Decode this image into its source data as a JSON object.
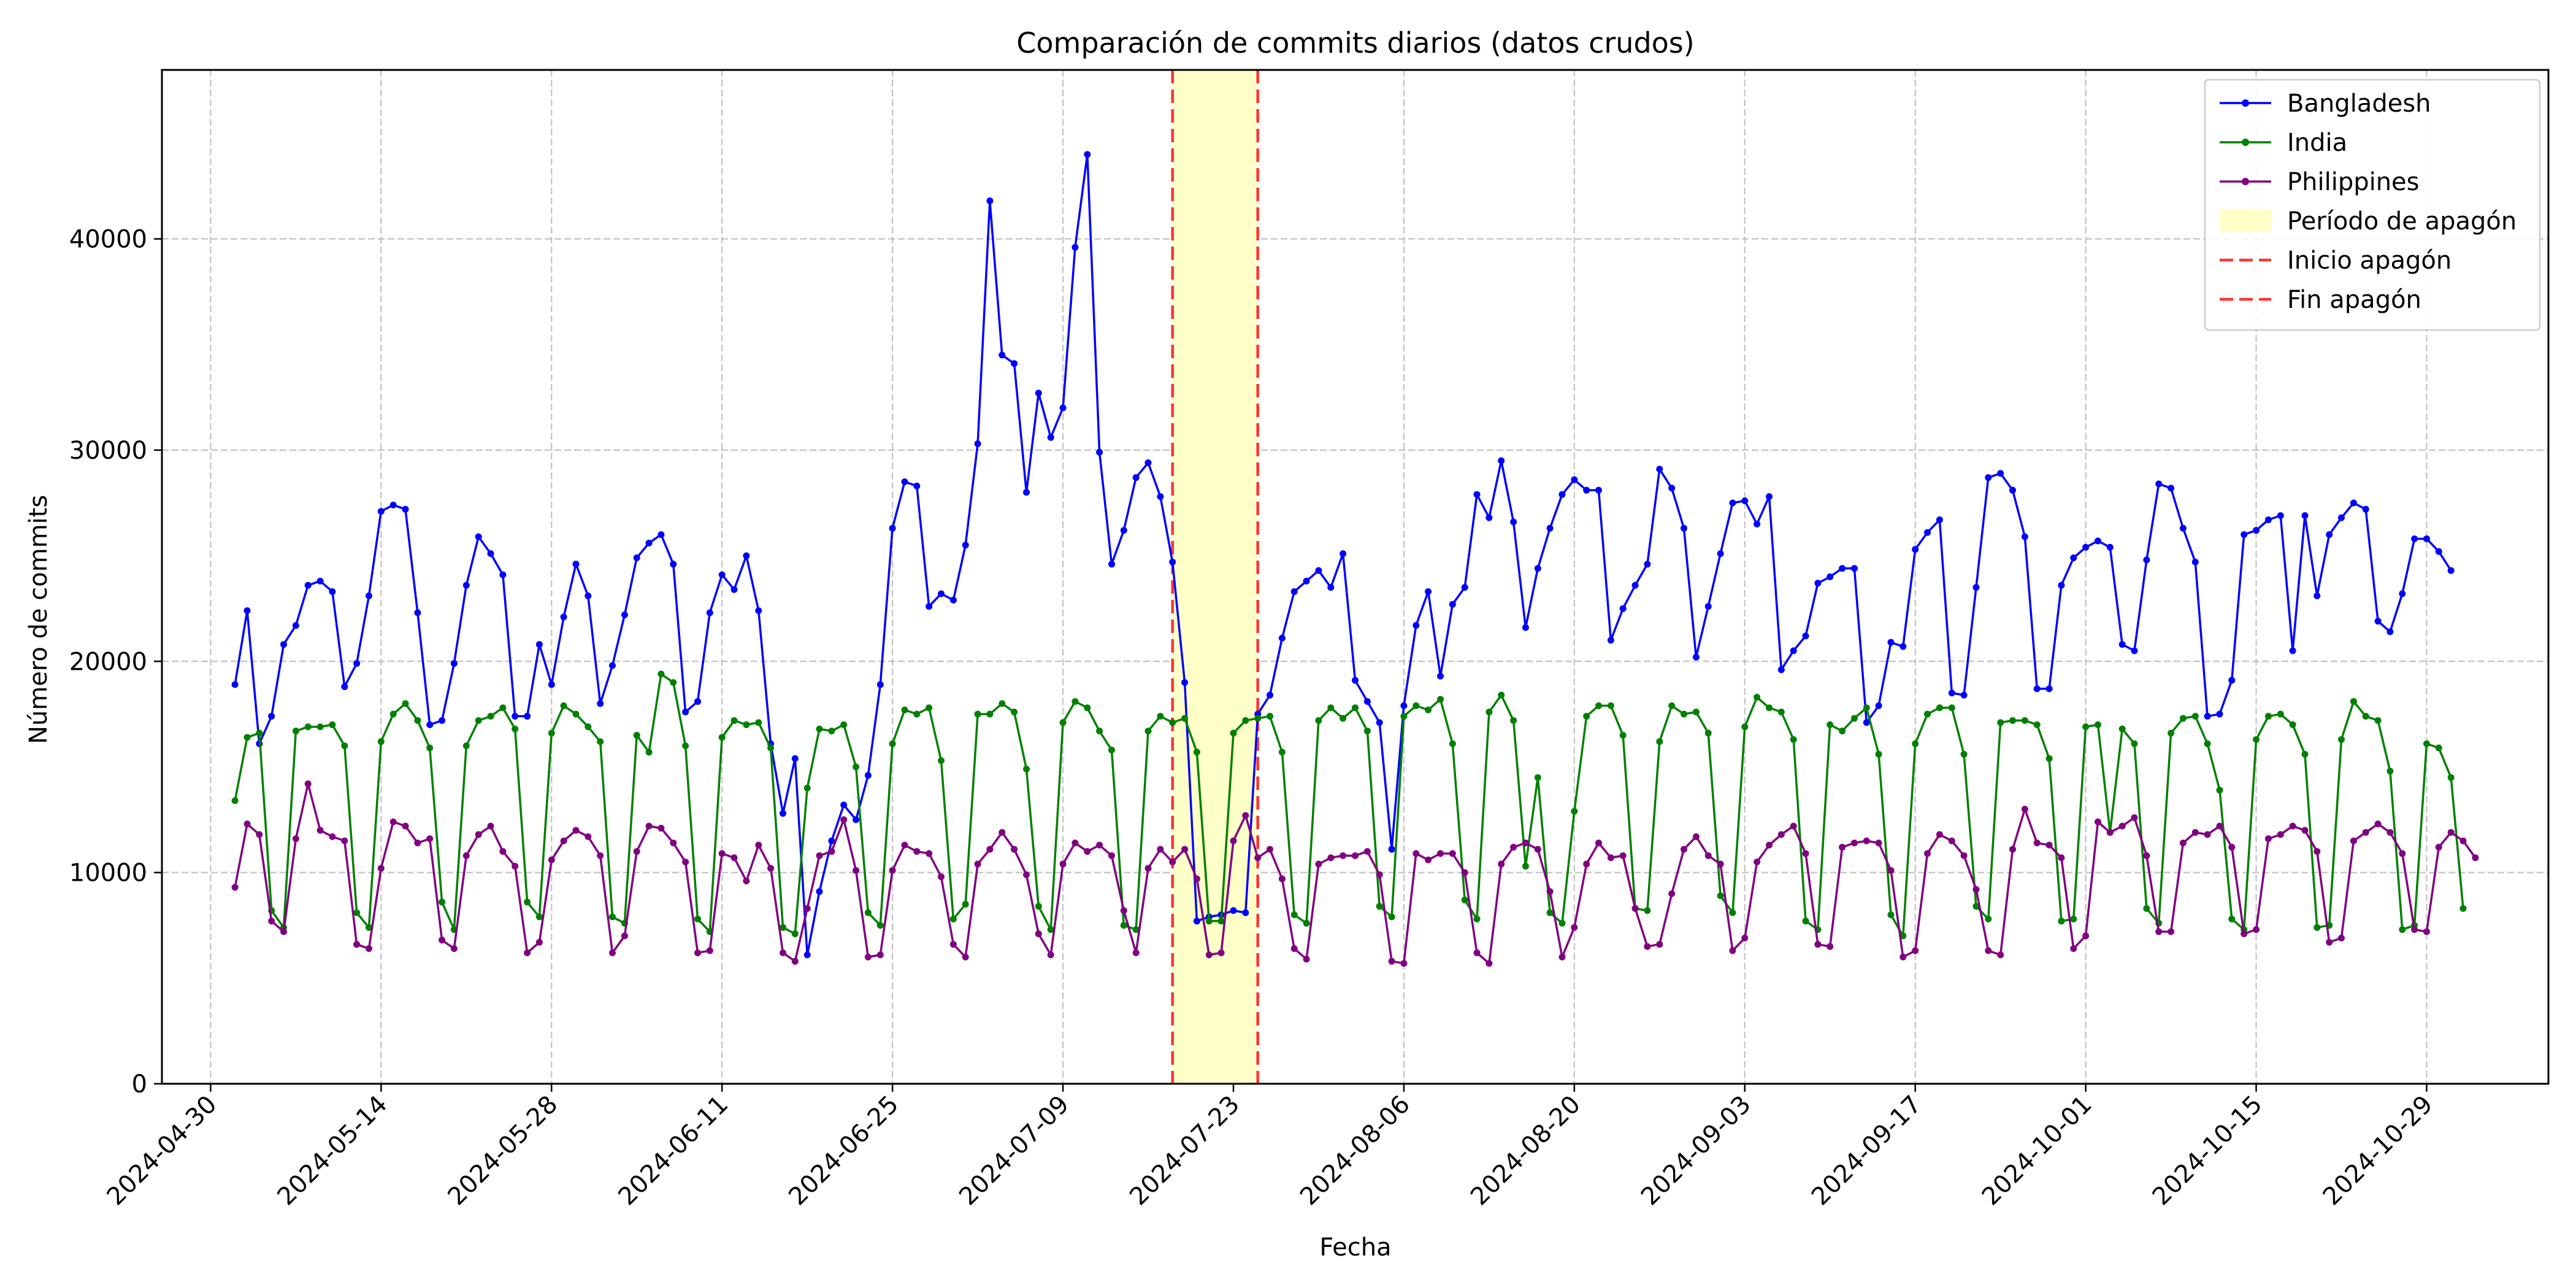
{
  "chart_data": {
    "type": "line",
    "title": "Comparación de commits diarios (datos crudos)",
    "xlabel": "Fecha",
    "ylabel": "Número de commits",
    "x_start": "2024-05-02",
    "x_end": "2024-11-02",
    "xlim": [
      "2024-04-26",
      "2024-11-08"
    ],
    "ylim": [
      0,
      48000
    ],
    "x_ticks": [
      "2024-04-30",
      "2024-05-14",
      "2024-05-28",
      "2024-06-11",
      "2024-06-25",
      "2024-07-09",
      "2024-07-23",
      "2024-08-06",
      "2024-08-20",
      "2024-09-03",
      "2024-09-17",
      "2024-10-01",
      "2024-10-15",
      "2024-10-29"
    ],
    "y_ticks": [
      0,
      10000,
      20000,
      30000,
      40000
    ],
    "grid": true,
    "legend_position": "top-right",
    "blackout": {
      "start": "2024-07-18",
      "end": "2024-07-25",
      "label": "Período de apagón",
      "start_label": "Inicio apagón",
      "end_label": "Fin apagón",
      "fill_color": "#ffffc8",
      "line_color": "#ff3333"
    },
    "series": [
      {
        "name": "Bangladesh",
        "color": "#0000ff",
        "values": [
          18900,
          22400,
          16100,
          17400,
          20800,
          21700,
          23600,
          23800,
          23300,
          18800,
          19900,
          23100,
          27100,
          27400,
          27200,
          22300,
          17000,
          17200,
          19900,
          23600,
          25900,
          25100,
          24100,
          17400,
          17400,
          20800,
          18900,
          22100,
          24600,
          23100,
          18000,
          19800,
          22200,
          24900,
          25600,
          26000,
          24600,
          17600,
          18100,
          22300,
          24100,
          23400,
          25000,
          22400,
          16100,
          12800,
          15400,
          6100,
          9100,
          11500,
          13200,
          12500,
          14600,
          18900,
          26300,
          28500,
          28300,
          22600,
          23200,
          22900,
          25500,
          30300,
          41800,
          34500,
          34100,
          28000,
          32700,
          30600,
          32000,
          39600,
          44000,
          29900,
          24600,
          26200,
          28700,
          29400,
          27800,
          24700,
          19000,
          7700,
          7900,
          8000,
          8200,
          8100,
          17500,
          18400,
          21100,
          23300,
          23800,
          24300,
          23500,
          25100,
          19100,
          18100,
          17100,
          11100,
          17900,
          21700,
          23300,
          19300,
          22700,
          23500,
          27900,
          26800,
          29500,
          26600,
          21600,
          24400,
          26300,
          27900,
          28600,
          28100,
          28100,
          21000,
          22500,
          23600,
          24600,
          29100,
          28200,
          26300,
          20200,
          22600,
          25100,
          27500,
          27600,
          26500,
          27800,
          19600,
          20500,
          21200,
          23700,
          24000,
          24400,
          24400,
          17100,
          17900,
          20900,
          20700,
          25300,
          26100,
          26700,
          18500,
          18400,
          23500,
          28700,
          28900,
          28100,
          25900,
          18700,
          18700,
          23600,
          24900,
          25400,
          25700,
          25400,
          20800,
          20500,
          24800,
          28400,
          28200,
          26300,
          24700,
          17400,
          17500,
          19100,
          26000,
          26200,
          26700,
          26900,
          20500,
          26900,
          23100,
          26000,
          26800,
          27500,
          27200,
          21900,
          21400,
          23200,
          25800,
          25800,
          25200,
          24300
        ]
      },
      {
        "name": "India",
        "color": "#008000",
        "values": [
          13400,
          16400,
          16600,
          8200,
          7400,
          16700,
          16900,
          16900,
          17000,
          16000,
          8100,
          7400,
          16200,
          17500,
          18000,
          17200,
          15900,
          8600,
          7300,
          16000,
          17200,
          17400,
          17800,
          16800,
          8600,
          7900,
          16600,
          17900,
          17500,
          16900,
          16200,
          7900,
          7600,
          16500,
          15700,
          19400,
          19000,
          16000,
          7800,
          7200,
          16400,
          17200,
          17000,
          17100,
          15900,
          7400,
          7100,
          14000,
          16800,
          16700,
          17000,
          15000,
          8100,
          7500,
          16100,
          17700,
          17500,
          17800,
          15300,
          7800,
          8500,
          17500,
          17500,
          18000,
          17600,
          14900,
          8400,
          7300,
          17100,
          18100,
          17800,
          16700,
          15800,
          7500,
          7300,
          16700,
          17400,
          17100,
          17300,
          15700,
          7700,
          7700,
          16600,
          17200,
          17300,
          17400,
          15700,
          8000,
          7600,
          17200,
          17800,
          17300,
          17800,
          16700,
          8400,
          7900,
          17400,
          17900,
          17700,
          18200,
          16100,
          8700,
          7800,
          17600,
          18400,
          17200,
          10300,
          14500,
          8100,
          7600,
          12900,
          17400,
          17900,
          17900,
          16500,
          8300,
          8200,
          16200,
          17900,
          17500,
          17600,
          16600,
          8900,
          8100,
          16900,
          18300,
          17800,
          17600,
          16300,
          7700,
          7300,
          17000,
          16700,
          17300,
          17800,
          15600,
          8000,
          7000,
          16100,
          17500,
          17800,
          17800,
          15600,
          8400,
          7800,
          17100,
          17200,
          17200,
          17000,
          15400,
          7700,
          7800,
          16900,
          17000,
          11900,
          16800,
          16100,
          8300,
          7600,
          16600,
          17300,
          17400,
          16100,
          13900,
          7800,
          7300,
          16300,
          17400,
          17500,
          17000,
          15600,
          7400,
          7500,
          16300,
          18100,
          17400,
          17200,
          14800,
          7300,
          7500,
          16100,
          15900,
          14500,
          8300
        ]
      },
      {
        "name": "Philippines",
        "color": "#800080",
        "values": [
          9300,
          12300,
          11800,
          7700,
          7200,
          11600,
          14200,
          12000,
          11700,
          11500,
          6600,
          6400,
          10200,
          12400,
          12200,
          11400,
          11600,
          6800,
          6400,
          10800,
          11800,
          12200,
          11000,
          10300,
          6200,
          6700,
          10600,
          11500,
          12000,
          11700,
          10800,
          6200,
          7000,
          11000,
          12200,
          12100,
          11400,
          10500,
          6200,
          6300,
          10900,
          10700,
          9600,
          11300,
          10200,
          6200,
          5800,
          8300,
          10800,
          11000,
          12500,
          10100,
          6000,
          6100,
          10100,
          11300,
          11000,
          10900,
          9800,
          6600,
          6000,
          10400,
          11100,
          11900,
          11100,
          9900,
          7100,
          6100,
          10400,
          11400,
          11000,
          11300,
          10800,
          8200,
          6200,
          10200,
          11100,
          10500,
          11100,
          9700,
          6100,
          6200,
          11500,
          12700,
          10700,
          11100,
          9700,
          6400,
          5900,
          10400,
          10700,
          10800,
          10800,
          11000,
          9900,
          5800,
          5700,
          10900,
          10600,
          10900,
          10900,
          10000,
          6200,
          5700,
          10400,
          11200,
          11400,
          11100,
          9100,
          6000,
          7400,
          10400,
          11400,
          10700,
          10800,
          8300,
          6500,
          6600,
          9000,
          11100,
          11700,
          10800,
          10400,
          6300,
          6900,
          10500,
          11300,
          11800,
          12200,
          10900,
          6600,
          6500,
          11200,
          11400,
          11500,
          11400,
          10100,
          6000,
          6300,
          10900,
          11800,
          11500,
          10800,
          9200,
          6300,
          6100,
          11100,
          13000,
          11400,
          11300,
          10700,
          6400,
          7000,
          12400,
          11900,
          12200,
          12600,
          10800,
          7200,
          7200,
          11400,
          11900,
          11800,
          12200,
          11200,
          7100,
          7300,
          11600,
          11800,
          12200,
          12000,
          11000,
          6700,
          6900,
          11500,
          11900,
          12300,
          11900,
          10900,
          7300,
          7200,
          11200,
          11900,
          11500,
          10700
        ]
      }
    ]
  }
}
